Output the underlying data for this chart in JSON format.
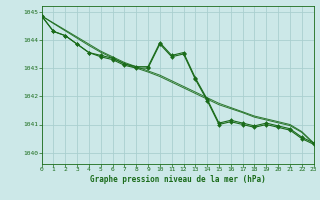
{
  "background_color": "#cce8e8",
  "grid_color": "#aacfcf",
  "line_color": "#1a6b1a",
  "xlabel": "Graphe pression niveau de la mer (hPa)",
  "xlim": [
    0,
    23
  ],
  "ylim": [
    1039.6,
    1045.2
  ],
  "yticks": [
    1040,
    1041,
    1042,
    1043,
    1044,
    1045
  ],
  "xticks": [
    0,
    1,
    2,
    3,
    4,
    5,
    6,
    7,
    8,
    9,
    10,
    11,
    12,
    13,
    14,
    15,
    16,
    17,
    18,
    19,
    20,
    21,
    22,
    23
  ],
  "series_marked": [
    [
      1044.85,
      1044.3,
      1044.15,
      1043.85,
      1043.55,
      1043.45,
      1043.35,
      1043.15,
      1043.05,
      1043.05,
      1043.9,
      1043.45,
      1043.55,
      1042.65,
      1041.9,
      1041.05,
      1041.15,
      1041.05,
      1040.95,
      1041.05,
      1040.95,
      1040.85,
      1040.55,
      1040.35
    ],
    [
      1044.85,
      1044.3,
      1044.15,
      1043.85,
      1043.55,
      1043.4,
      1043.3,
      1043.1,
      1043.0,
      1043.0,
      1043.85,
      1043.4,
      1043.5,
      1042.6,
      1041.85,
      1041.0,
      1041.1,
      1041.0,
      1040.9,
      1041.0,
      1040.9,
      1040.8,
      1040.5,
      1040.3
    ]
  ],
  "series_smooth": [
    [
      1044.85,
      1044.6,
      1044.35,
      1044.1,
      1043.85,
      1043.6,
      1043.4,
      1043.2,
      1043.05,
      1042.9,
      1042.75,
      1042.55,
      1042.35,
      1042.15,
      1041.95,
      1041.75,
      1041.6,
      1041.45,
      1041.3,
      1041.2,
      1041.1,
      1041.0,
      1040.75,
      1040.35
    ],
    [
      1044.85,
      1044.58,
      1044.32,
      1044.06,
      1043.8,
      1043.56,
      1043.36,
      1043.16,
      1043.0,
      1042.86,
      1042.7,
      1042.5,
      1042.3,
      1042.1,
      1041.9,
      1041.7,
      1041.56,
      1041.42,
      1041.26,
      1041.16,
      1041.06,
      1040.96,
      1040.72,
      1040.32
    ]
  ]
}
